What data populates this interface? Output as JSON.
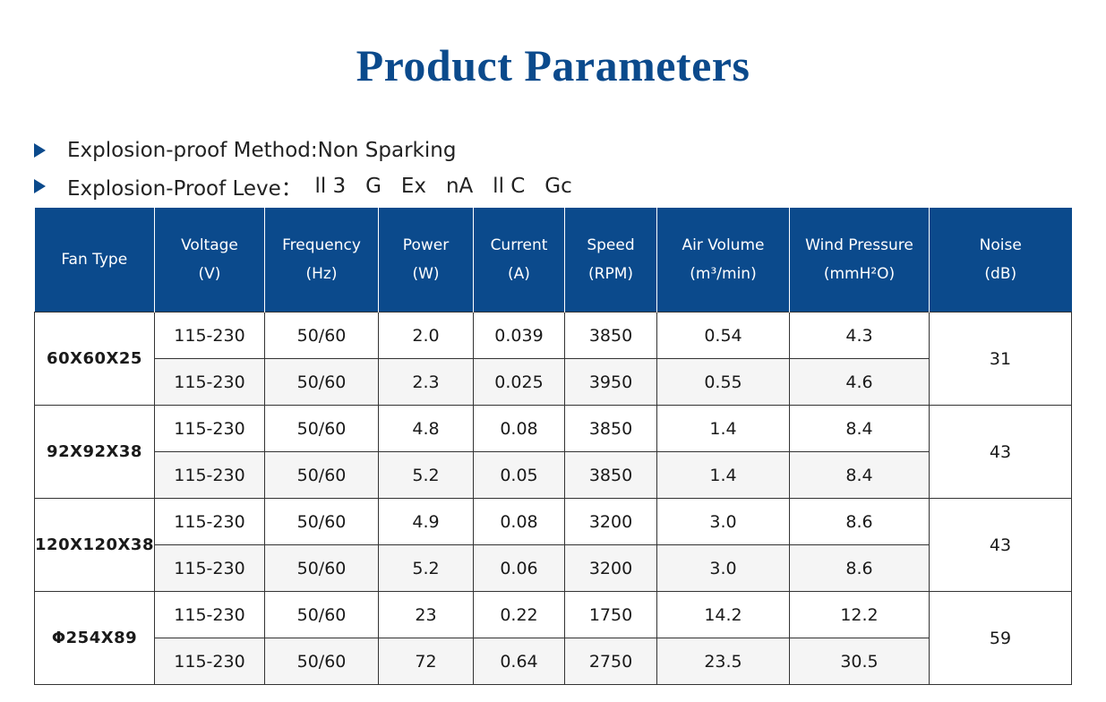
{
  "title": "Product Parameters",
  "bullets": [
    {
      "label": "Explosion-proof Method: ",
      "value": "Non Sparking"
    },
    {
      "label": "Explosion-Proof Leve：",
      "value": "  ll 3   G   Ex   nA   ll C   Gc"
    }
  ],
  "table": {
    "headers": [
      {
        "line1": "Fan Type",
        "line2": ""
      },
      {
        "line1": "Voltage",
        "line2": "(V)"
      },
      {
        "line1": "Frequency",
        "line2": "(Hz)"
      },
      {
        "line1": "Power",
        "line2": "(W)"
      },
      {
        "line1": "Current",
        "line2": "(A)"
      },
      {
        "line1": "Speed",
        "line2": "(RPM)"
      },
      {
        "line1": "Air Volume",
        "line2": "(m³/min)"
      },
      {
        "line1": "Wind Pressure",
        "line2": "(mmH²O)"
      },
      {
        "line1": "Noise",
        "line2": "(dB)"
      }
    ],
    "groups": [
      {
        "type": "60X60X25",
        "noise": "31",
        "rows": [
          [
            "115-230",
            "50/60",
            "2.0",
            "0.039",
            "3850",
            "0.54",
            "4.3"
          ],
          [
            "115-230",
            "50/60",
            "2.3",
            "0.025",
            "3950",
            "0.55",
            "4.6"
          ]
        ]
      },
      {
        "type": "92X92X38",
        "noise": "43",
        "rows": [
          [
            "115-230",
            "50/60",
            "4.8",
            "0.08",
            "3850",
            "1.4",
            "8.4"
          ],
          [
            "115-230",
            "50/60",
            "5.2",
            "0.05",
            "3850",
            "1.4",
            "8.4"
          ]
        ]
      },
      {
        "type": "120X120X38",
        "noise": "43",
        "rows": [
          [
            "115-230",
            "50/60",
            "4.9",
            "0.08",
            "3200",
            "3.0",
            "8.6"
          ],
          [
            "115-230",
            "50/60",
            "5.2",
            "0.06",
            "3200",
            "3.0",
            "8.6"
          ]
        ]
      },
      {
        "type": "Φ254X89",
        "noise": "59",
        "rows": [
          [
            "115-230",
            "50/60",
            "23",
            "0.22",
            "1750",
            "14.2",
            "12.2"
          ],
          [
            "115-230",
            "50/60",
            "72",
            "0.64",
            "2750",
            "23.5",
            "30.5"
          ]
        ]
      }
    ]
  }
}
